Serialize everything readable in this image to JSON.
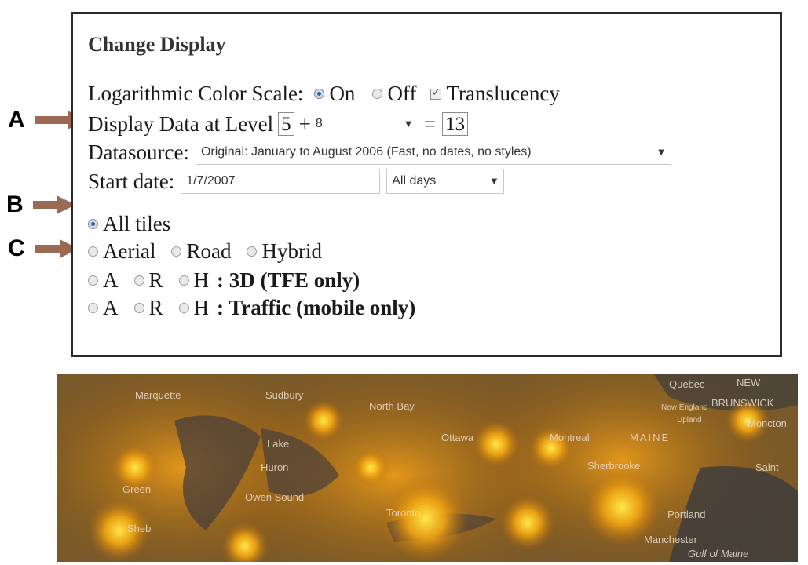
{
  "panel": {
    "title": "Change Display",
    "log_scale": {
      "label": "Logarithmic Color Scale:",
      "on_label": "On",
      "off_label": "Off",
      "selected": "On",
      "translucency_label": "Translucency",
      "translucency_checked": true
    },
    "level": {
      "label": "Display Data at Level",
      "base_value": "5",
      "plus": "+",
      "select_value": "8",
      "equals": "=",
      "result_value": "13"
    },
    "datasource": {
      "label": "Datasource:",
      "value": "Original: January to August 2006 (Fast, no dates, no styles)"
    },
    "start_date": {
      "label": "Start date:",
      "value": "1/7/2007",
      "range_value": "All days"
    },
    "tiles": {
      "all_label": "All tiles",
      "aerial_label": "Aerial",
      "road_label": "Road",
      "hybrid_label": "Hybrid",
      "a_label": "A",
      "r_label": "R",
      "h_label": "H",
      "row3_suffix": ": 3D (TFE only)",
      "row4_suffix": ": Traffic (mobile only)"
    }
  },
  "annotations": {
    "a": "A",
    "b": "B",
    "c": "C",
    "arrow_color": "#9a6a55"
  },
  "map": {
    "labels": [
      "Marquette",
      "Sudbury",
      "North Bay",
      "Quebec",
      "NEW",
      "BRUNSWICK",
      "New England",
      "Upland",
      "Moncton",
      "Lake",
      "Huron",
      "Ottawa",
      "Montreal",
      "MAINE",
      "Saint",
      "Green",
      "Owen Sound",
      "Sherbrooke",
      "Portland",
      "Sheb",
      "Toronto",
      "Manchester",
      "Gulf of Maine"
    ]
  }
}
